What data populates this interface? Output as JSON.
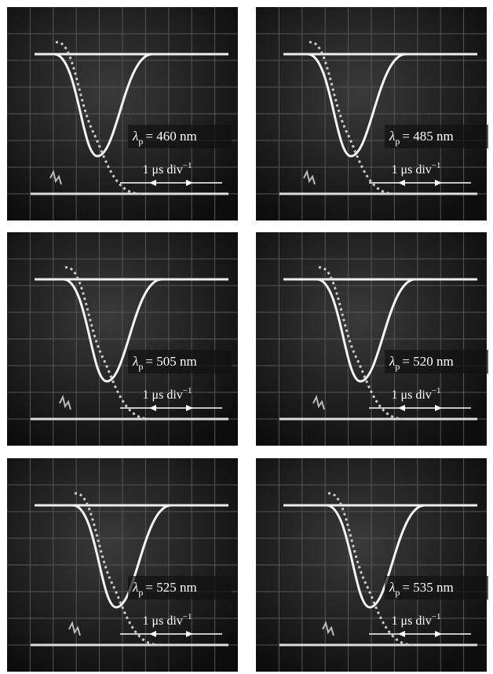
{
  "panels": [
    {
      "symbol": "λ",
      "subscript": "p",
      "equation": "= 460 nm",
      "scale": "1 μs div",
      "scale_exponent": "−1"
    },
    {
      "symbol": "λ",
      "subscript": "p",
      "equation": "= 485 nm",
      "scale": "1 μs div",
      "scale_exponent": "−1"
    },
    {
      "symbol": "λ",
      "subscript": "p",
      "equation": "= 505 nm",
      "scale": "1 μs div",
      "scale_exponent": "−1"
    },
    {
      "symbol": "λ",
      "subscript": "p",
      "equation": "= 520 nm",
      "scale": "1 μs div",
      "scale_exponent": "−1"
    },
    {
      "symbol": "λ",
      "subscript": "p",
      "equation": "= 525 nm",
      "scale": "1 μs div",
      "scale_exponent": "−1"
    },
    {
      "symbol": "λ",
      "subscript": "p",
      "equation": "= 535 nm",
      "scale": "1 μs div",
      "scale_exponent": "−1"
    }
  ]
}
